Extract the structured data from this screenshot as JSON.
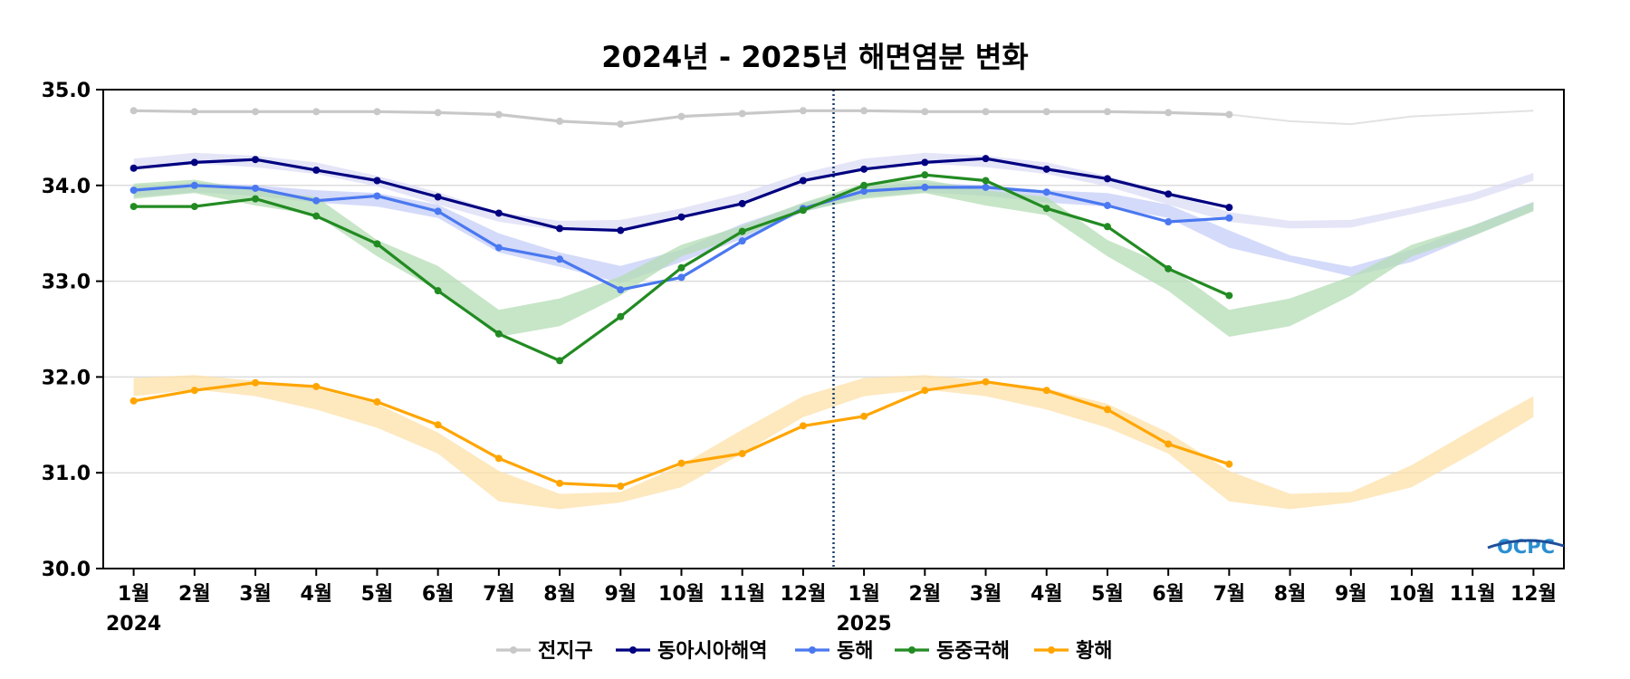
{
  "chart_data": {
    "type": "line",
    "title": "2024년 - 2025년 해면염분 변화",
    "xlabel": "",
    "ylabel": "",
    "ylim": [
      30.0,
      35.0
    ],
    "yticks": [
      "30.0",
      "31.0",
      "32.0",
      "33.0",
      "34.0",
      "35.0"
    ],
    "categories": [
      "1월",
      "2월",
      "3월",
      "4월",
      "5월",
      "6월",
      "7월",
      "8월",
      "9월",
      "10월",
      "11월",
      "12월",
      "1월",
      "2월",
      "3월",
      "4월",
      "5월",
      "6월",
      "7월",
      "8월",
      "9월",
      "10월",
      "11월",
      "12월"
    ],
    "year_labels": [
      {
        "text": "2024",
        "index": 0
      },
      {
        "text": "2025",
        "index": 12
      }
    ],
    "divider_between": [
      11,
      12
    ],
    "grid": "horizontal",
    "legend": "bottom-center",
    "logo": "OCPC",
    "series": [
      {
        "name": "전지구",
        "color": "#c8c8c8",
        "values": [
          34.78,
          34.77,
          34.77,
          34.77,
          34.77,
          34.76,
          34.74,
          34.67,
          34.64,
          34.72,
          34.75,
          34.78,
          34.78,
          34.77,
          34.77,
          34.77,
          34.77,
          34.76,
          34.74,
          null,
          null,
          null,
          null,
          null
        ],
        "climatology": [
          34.78,
          34.77,
          34.77,
          34.77,
          34.77,
          34.76,
          34.74,
          34.67,
          34.64,
          34.72,
          34.75,
          34.78,
          34.78,
          34.77,
          34.77,
          34.77,
          34.77,
          34.76,
          34.74,
          34.67,
          34.64,
          34.72,
          34.75,
          34.78
        ]
      },
      {
        "name": "동아시아해역",
        "color": "#000080",
        "band_color": "#dcdcf5",
        "values": [
          34.18,
          34.24,
          34.27,
          34.16,
          34.05,
          33.88,
          33.71,
          33.55,
          33.53,
          33.67,
          33.81,
          34.05,
          34.17,
          34.24,
          34.28,
          34.17,
          34.07,
          33.91,
          33.77,
          null,
          null,
          null,
          null,
          null
        ],
        "band_low": [
          34.17,
          34.23,
          34.19,
          34.12,
          33.99,
          33.8,
          33.62,
          33.53,
          33.54,
          33.67,
          33.81,
          34.03,
          34.17,
          34.23,
          34.19,
          34.12,
          33.99,
          33.8,
          33.62,
          33.55,
          33.56,
          33.7,
          33.84,
          34.05
        ],
        "band_high": [
          34.28,
          34.34,
          34.31,
          34.24,
          34.1,
          33.93,
          33.72,
          33.63,
          33.64,
          33.76,
          33.92,
          34.13,
          34.28,
          34.34,
          34.31,
          34.24,
          34.1,
          33.93,
          33.72,
          33.63,
          33.64,
          33.77,
          33.92,
          34.13
        ]
      },
      {
        "name": "동해",
        "color": "#4a78f0",
        "band_color": "#c6cdf7",
        "values": [
          33.95,
          34.0,
          33.97,
          33.84,
          33.89,
          33.73,
          33.35,
          33.23,
          32.91,
          33.04,
          33.42,
          33.76,
          33.94,
          33.98,
          33.98,
          33.93,
          33.79,
          33.62,
          33.66,
          null,
          null,
          null,
          null,
          null
        ],
        "band_low": [
          33.88,
          33.93,
          33.89,
          33.82,
          33.78,
          33.66,
          33.3,
          33.15,
          32.98,
          33.2,
          33.44,
          33.72,
          33.88,
          33.93,
          33.89,
          33.82,
          33.78,
          33.66,
          33.35,
          33.2,
          33.05,
          33.2,
          33.47,
          33.74
        ],
        "band_high": [
          33.99,
          34.03,
          34.0,
          33.95,
          33.92,
          33.8,
          33.5,
          33.3,
          33.16,
          33.33,
          33.6,
          33.81,
          33.99,
          34.03,
          34.0,
          33.95,
          33.92,
          33.8,
          33.53,
          33.27,
          33.15,
          33.33,
          33.58,
          33.83
        ]
      },
      {
        "name": "동중국해",
        "color": "#228b22",
        "band_color": "#b4dcb4",
        "values": [
          33.78,
          33.78,
          33.86,
          33.68,
          33.39,
          32.9,
          32.45,
          32.17,
          32.63,
          33.14,
          33.52,
          33.74,
          34.0,
          34.11,
          34.05,
          33.76,
          33.57,
          33.13,
          32.85,
          null,
          null,
          null,
          null,
          null
        ],
        "band_low": [
          33.86,
          33.92,
          33.79,
          33.69,
          33.26,
          32.9,
          32.42,
          32.53,
          32.85,
          33.26,
          33.47,
          33.73,
          33.86,
          33.92,
          33.79,
          33.69,
          33.26,
          32.9,
          32.42,
          32.53,
          32.85,
          33.26,
          33.47,
          33.73
        ],
        "band_high": [
          34.02,
          34.06,
          33.95,
          33.88,
          33.43,
          33.16,
          32.7,
          32.82,
          33.05,
          33.38,
          33.58,
          33.82,
          34.02,
          34.06,
          33.95,
          33.88,
          33.43,
          33.16,
          32.7,
          32.82,
          33.05,
          33.38,
          33.58,
          33.82
        ]
      },
      {
        "name": "황해",
        "color": "#ffa500",
        "band_color": "#fde0a8",
        "values": [
          31.75,
          31.86,
          31.94,
          31.9,
          31.74,
          31.5,
          31.15,
          30.89,
          30.86,
          31.1,
          31.2,
          31.49,
          31.59,
          31.86,
          31.95,
          31.86,
          31.66,
          31.3,
          31.09,
          null,
          null,
          null,
          null,
          null
        ],
        "band_low": [
          31.8,
          31.87,
          31.8,
          31.66,
          31.47,
          31.2,
          30.7,
          30.62,
          30.69,
          30.85,
          31.2,
          31.58,
          31.8,
          31.87,
          31.8,
          31.66,
          31.47,
          31.2,
          30.7,
          30.62,
          30.69,
          30.85,
          31.2,
          31.58
        ],
        "band_high": [
          31.99,
          32.02,
          31.96,
          31.88,
          31.72,
          31.42,
          31.02,
          30.78,
          30.8,
          31.08,
          31.45,
          31.8,
          31.99,
          32.02,
          31.96,
          31.88,
          31.72,
          31.42,
          31.02,
          30.78,
          30.8,
          31.08,
          31.45,
          31.8
        ]
      }
    ]
  }
}
